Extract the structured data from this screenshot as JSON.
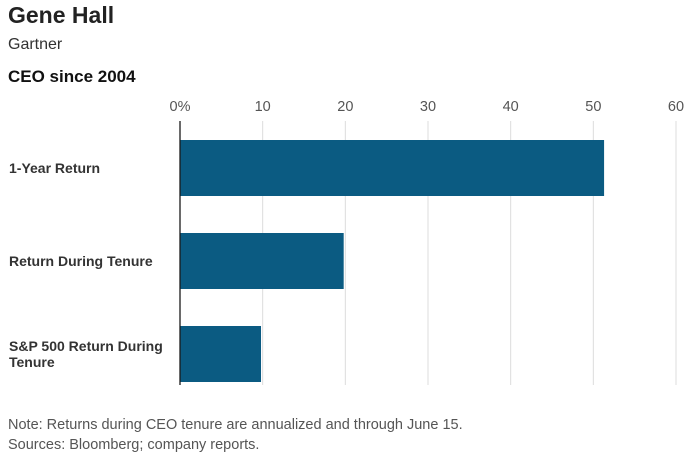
{
  "title": "Gene Hall",
  "subtitle": "Gartner",
  "subhead": "CEO since 2004",
  "notes": {
    "note": "Note: Returns during CEO tenure are annualized and through June 15.",
    "sources": "Sources: Bloomberg; company reports."
  },
  "colors": {
    "bar": "#0b5b82",
    "grid": "#dcdcdc",
    "axis": "#1a1a1a",
    "tick_text": "#555555",
    "label_text": "#333333"
  },
  "chart_data": {
    "type": "bar",
    "orientation": "horizontal",
    "categories": [
      "1-Year Return",
      "Return During Tenure",
      "S&P 500 Return During Tenure"
    ],
    "category_lines": [
      [
        "1-Year Return"
      ],
      [
        "Return During Tenure"
      ],
      [
        "S&P 500 Return During",
        "Tenure"
      ]
    ],
    "values": [
      51.3,
      19.8,
      9.8
    ],
    "xlim": [
      0,
      60
    ],
    "ticks": [
      0,
      10,
      20,
      30,
      40,
      50,
      60
    ],
    "tick_labels": [
      "0%",
      "10",
      "20",
      "30",
      "40",
      "50",
      "60"
    ],
    "grid": true
  }
}
